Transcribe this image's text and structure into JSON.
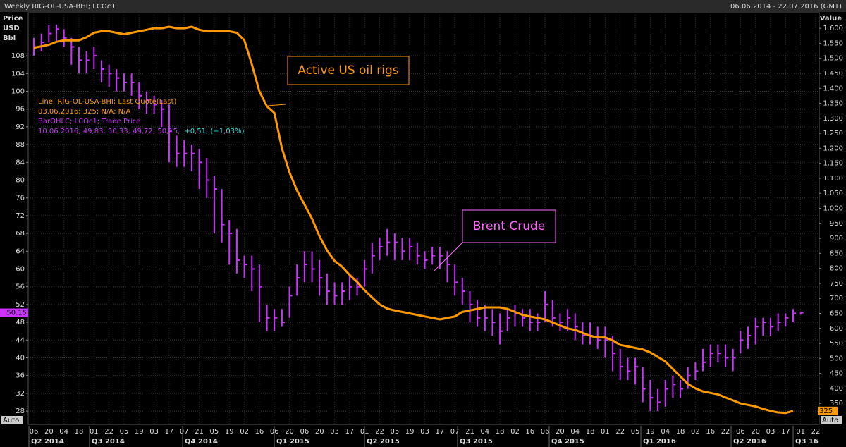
{
  "chart_data": {
    "type": "ohlc",
    "title": "Weekly RIG-OL-USA-BHI; LCOc1",
    "range": "06.06.2014 - 22.07.2016 (GMT)",
    "y_label": [
      "Price",
      "USD",
      "Bbl"
    ],
    "y2_label": "Value",
    "categories": [
      "06",
      null,
      "20",
      null,
      "04",
      null,
      "18",
      null,
      "01",
      null,
      "22",
      null,
      "05",
      null,
      "19",
      null,
      "03",
      null,
      "17",
      null,
      "07",
      null,
      "21",
      null,
      "05",
      null,
      "19",
      null,
      "02",
      null,
      "16",
      null,
      "06",
      null,
      "20",
      null,
      "06",
      null,
      "20",
      null,
      "03",
      null,
      "17",
      null,
      "01",
      null,
      "22",
      null,
      "05",
      null,
      "19",
      null,
      "03",
      null,
      "17",
      null,
      "07",
      null,
      "21",
      null,
      "04",
      null,
      "18",
      null,
      "02",
      null,
      "16",
      null,
      "06",
      null,
      "20",
      null,
      "04",
      null,
      "18",
      null,
      "01",
      null,
      "22",
      null,
      "05",
      null,
      "19",
      null,
      "04",
      null,
      "18",
      null,
      "02",
      null,
      "16",
      null,
      "22",
      null,
      "06",
      null,
      "20",
      null,
      "03",
      null,
      "17",
      null,
      "01",
      null,
      "22",
      null
    ],
    "periods": [
      "Q2 2014",
      "Q3 2014",
      "Q4 2014",
      "Q1 2015",
      "Q2 2015",
      "Q3 2015",
      "Q4 2015",
      "Q1 2016",
      "Q2 2016",
      "Q3 16"
    ],
    "series": [
      {
        "type": "ohlc",
        "color": "#cc33ff",
        "last_label": "50.15",
        "values": [
          110,
          111,
          113,
          114,
          112,
          110,
          107,
          107,
          108,
          105,
          104,
          103,
          102,
          102,
          99,
          98,
          97,
          96,
          91,
          86,
          86,
          86,
          84,
          80,
          78,
          70,
          68,
          62,
          61,
          60,
          56,
          49,
          49,
          48,
          54,
          58,
          61,
          60,
          58,
          55,
          54,
          55,
          56,
          56,
          60,
          63,
          65,
          66,
          66,
          64,
          65,
          63,
          62,
          63,
          63,
          61,
          57,
          55,
          52,
          49,
          49,
          48,
          46,
          49,
          50,
          49,
          48,
          48,
          52,
          49,
          48,
          49,
          47,
          45,
          45,
          44,
          44,
          41,
          38,
          37,
          38,
          33,
          31,
          30,
          33,
          34,
          33,
          36,
          37,
          39,
          41,
          41,
          40,
          40,
          44,
          45,
          47,
          48,
          47,
          48,
          49,
          50,
          50.15,
          null,
          null,
          null
        ],
        "high": [
          112,
          113,
          115,
          115,
          114,
          112,
          110,
          109,
          110,
          107,
          106,
          105,
          104,
          104,
          102,
          100,
          99,
          98,
          97,
          90,
          89,
          88,
          87,
          85,
          81,
          78,
          71,
          69,
          63,
          63,
          61,
          52,
          51,
          51,
          56,
          61,
          64,
          64,
          62,
          59,
          57,
          57,
          59,
          58,
          62,
          66,
          67,
          69,
          68,
          67,
          67,
          66,
          64,
          65,
          65,
          64,
          61,
          58,
          55,
          53,
          52,
          51,
          50,
          51,
          52,
          51,
          51,
          50,
          55,
          53,
          50,
          51,
          50,
          48,
          48,
          47,
          47,
          45,
          42,
          40,
          40,
          38,
          35,
          33,
          35,
          36,
          35,
          38,
          39,
          42,
          43,
          43,
          43,
          42,
          46,
          47,
          49,
          49,
          49,
          50,
          50,
          51,
          50.33,
          null,
          null,
          null
        ],
        "low": [
          108,
          109,
          111,
          111,
          110,
          106,
          104,
          104,
          105,
          102,
          101,
          100,
          100,
          99,
          96,
          95,
          95,
          92,
          84,
          83,
          83,
          82,
          78,
          76,
          68,
          66,
          61,
          59,
          58,
          55,
          48,
          46,
          46,
          47,
          49,
          54,
          57,
          57,
          54,
          52,
          52,
          52,
          53,
          54,
          56,
          59,
          62,
          63,
          62,
          62,
          62,
          61,
          60,
          61,
          60,
          57,
          54,
          52,
          48,
          47,
          46,
          45,
          43,
          46,
          47,
          47,
          46,
          46,
          48,
          47,
          46,
          46,
          44,
          43,
          43,
          42,
          40,
          37,
          35,
          35,
          34,
          30,
          28,
          28,
          29,
          31,
          31,
          33,
          35,
          37,
          38,
          39,
          38,
          37,
          41,
          42,
          43,
          45,
          45,
          46,
          47,
          48,
          49.72,
          null,
          null,
          null
        ]
      },
      {
        "type": "line",
        "axis": "y2",
        "color": "#ff9900",
        "last_label": "325",
        "values": [
          1535,
          1540,
          1545,
          1555,
          1560,
          1560,
          1560,
          1570,
          1585,
          1590,
          1590,
          1585,
          1580,
          1585,
          1590,
          1595,
          1600,
          1600,
          1605,
          1600,
          1600,
          1605,
          1595,
          1590,
          1590,
          1590,
          1590,
          1585,
          1560,
          1480,
          1390,
          1340,
          1318,
          1200,
          1120,
          1060,
          1013,
          966,
          907,
          860,
          825,
          806,
          778,
          755,
          727,
          703,
          680,
          666,
          660,
          655,
          650,
          645,
          640,
          635,
          630,
          635,
          640,
          655,
          660,
          665,
          670,
          670,
          670,
          665,
          655,
          645,
          640,
          635,
          630,
          620,
          610,
          600,
          595,
          585,
          575,
          570,
          570,
          560,
          545,
          540,
          535,
          530,
          520,
          505,
          490,
          465,
          440,
          415,
          400,
          390,
          385,
          380,
          370,
          360,
          350,
          345,
          340,
          332,
          325,
          320,
          318,
          325,
          null,
          null,
          null,
          null
        ]
      }
    ],
    "legend": [
      [
        {
          "text": "Line; RIG-OL-USA-BHI; Last Quote(Last)",
          "color": "#ff9900"
        }
      ],
      [
        {
          "text": "03.06.2016; 325; N/A; N/A",
          "color": "#ff9900"
        }
      ],
      [
        {
          "text": "BarOHLC; LCOc1; Trade Price",
          "color": "#cc33ff"
        }
      ],
      [
        {
          "text": "10.06.2016; 49,83; 50,33; 49,72; 50,15;",
          "color": "#cc33ff"
        },
        {
          "text": "+0,51; (+1,03%)",
          "color": "#33dddd"
        }
      ]
    ],
    "annotations": [
      {
        "text": "Active US oil rigs",
        "color": "#ff9900"
      },
      {
        "text": "Brent Crude",
        "color": "#ff66ff"
      }
    ],
    "scale_mode": [
      "Auto",
      "Auto"
    ],
    "ylim": [
      25,
      117.7
    ],
    "yticks": [
      28,
      32,
      36,
      40,
      44,
      48,
      52,
      56,
      60,
      64,
      68,
      72,
      76,
      80,
      84,
      88,
      92,
      96,
      100,
      104,
      108
    ],
    "y2lim": [
      280,
      1652
    ],
    "y2ticks": [
      350,
      400,
      450,
      500,
      550,
      600,
      650,
      700,
      750,
      800,
      850,
      900,
      950,
      {
        "value": 1000,
        "label": "1.000"
      },
      {
        "value": 1050,
        "label": "1.050"
      },
      {
        "value": 1100,
        "label": "1.100"
      },
      {
        "value": 1150,
        "label": "1.150"
      },
      {
        "value": 1200,
        "label": "1.200"
      },
      {
        "value": 1250,
        "label": "1.250"
      },
      {
        "value": 1300,
        "label": "1.300"
      },
      {
        "value": 1350,
        "label": "1.350"
      },
      {
        "value": 1400,
        "label": "1.400"
      },
      {
        "value": 1450,
        "label": "1.450"
      },
      {
        "value": 1500,
        "label": "1.500"
      },
      {
        "value": 1550,
        "label": "1.550"
      },
      {
        "value": 1600,
        "label": "1.600"
      }
    ],
    "grid": true
  }
}
